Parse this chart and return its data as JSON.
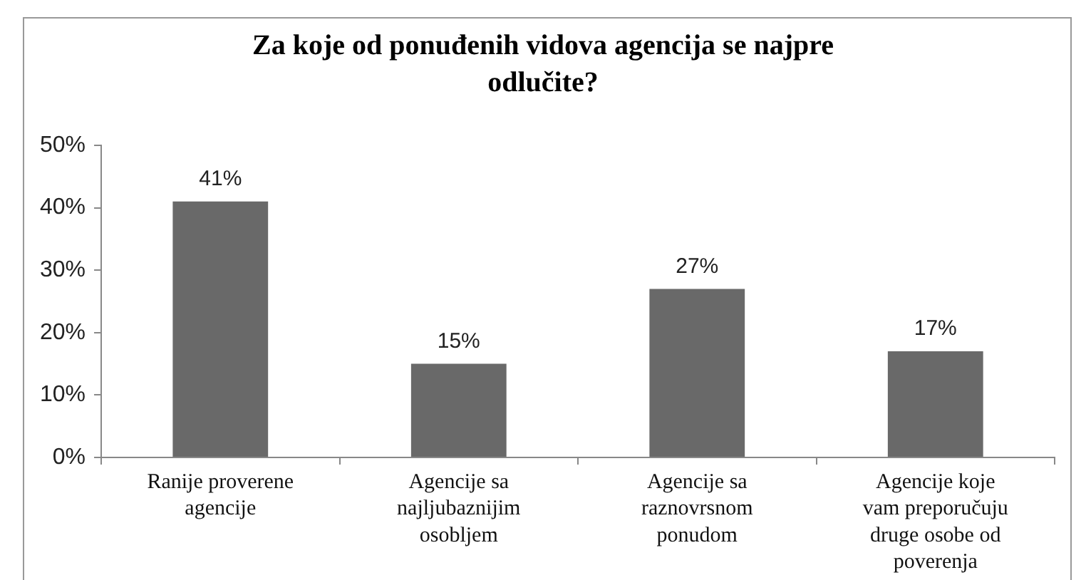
{
  "chart_data": {
    "type": "bar",
    "title": "Za koje od ponuđenih vidova agencija se najpre odlučite?",
    "categories": [
      "Ranije proverene agencije",
      "Agencije sa najljubaznijim osobljem",
      "Agencije sa raznovrsnom ponudom",
      "Agencije koje vam preporučuju druge osobe od poverenja"
    ],
    "values": [
      41,
      15,
      27,
      17
    ],
    "value_labels": [
      "41%",
      "15%",
      "27%",
      "17%"
    ],
    "color": "#696969",
    "ylim": [
      0,
      50
    ],
    "yticks": [
      {
        "value": 0,
        "label": "0%"
      },
      {
        "value": 10,
        "label": "10%"
      },
      {
        "value": 20,
        "label": "20%"
      },
      {
        "value": 30,
        "label": "30%"
      },
      {
        "value": 40,
        "label": "40%"
      },
      {
        "value": 50,
        "label": "50%"
      }
    ],
    "grid": false,
    "legend": false
  }
}
